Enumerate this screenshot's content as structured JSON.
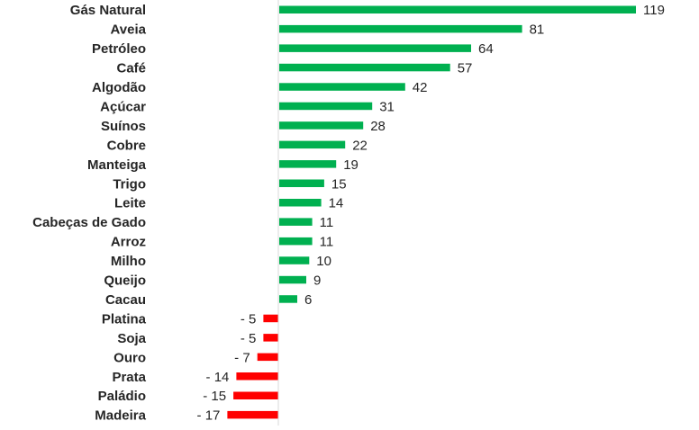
{
  "chart_data": {
    "type": "bar",
    "orientation": "horizontal",
    "categories": [
      "Gás Natural",
      "Aveia",
      "Petróleo",
      "Café",
      "Algodão",
      "Açúcar",
      "Suínos",
      "Cobre",
      "Manteiga",
      "Trigo",
      "Leite",
      "Cabeças de Gado",
      "Arroz",
      "Milho",
      "Queijo",
      "Cacau",
      "Platina",
      "Soja",
      "Ouro",
      "Prata",
      "Paládio",
      "Madeira"
    ],
    "values": [
      119,
      81,
      64,
      57,
      42,
      31,
      28,
      22,
      19,
      15,
      14,
      11,
      11,
      10,
      9,
      6,
      -5,
      -5,
      -7,
      -14,
      -15,
      -17
    ],
    "value_labels": [
      "119",
      "81",
      "64",
      "57",
      "42",
      "31",
      "28",
      "22",
      "19",
      "15",
      "14",
      "11",
      "11",
      "10",
      "9",
      "6",
      "- 5",
      "- 5",
      "- 7",
      "- 14",
      "- 15",
      "- 17"
    ],
    "colors": {
      "positive": "#00b050",
      "negative": "#ff0000",
      "axis": "#d9d9d9"
    },
    "grid": false,
    "legend": "none",
    "xlim": [
      -17,
      119
    ]
  }
}
